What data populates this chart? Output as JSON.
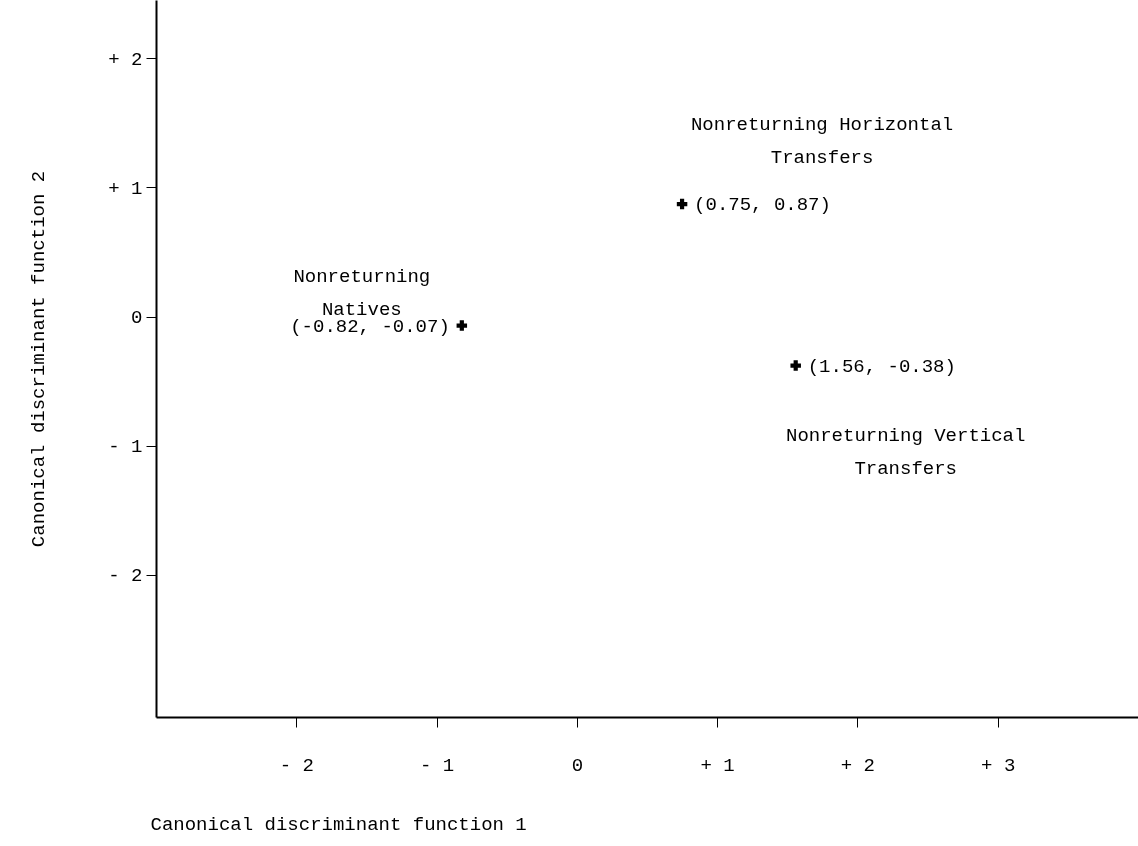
{
  "chart_data": {
    "type": "scatter",
    "xlabel": "Canonical discriminant function 1",
    "ylabel": "Canonical discriminant function 2",
    "series": [
      {
        "name": "Nonreturning\nNatives",
        "color": "#000000",
        "x": [
          -0.82
        ],
        "values": [
          -0.07
        ],
        "value_labels": [
          "(-0.82, -0.07)"
        ]
      },
      {
        "name": "Nonreturning Horizontal\nTransfers",
        "color": "#000000",
        "x": [
          0.75
        ],
        "values": [
          0.87
        ],
        "value_labels": [
          "(0.75, 0.87)"
        ]
      },
      {
        "name": "Nonreturning Vertical\nTransfers",
        "color": "#000000",
        "x": [
          1.56
        ],
        "values": [
          -0.38
        ],
        "value_labels": [
          "(1.56, -0.38)"
        ]
      }
    ],
    "xlim": [
      -3,
      4
    ],
    "ylim": [
      -3.1,
      2.45
    ],
    "xticks": [
      {
        "value": -2,
        "label": "- 2"
      },
      {
        "value": -1,
        "label": "- 1"
      },
      0,
      {
        "value": 1,
        "label": "+ 1"
      },
      {
        "value": 2,
        "label": "+ 2"
      },
      {
        "value": 3,
        "label": "+ 3"
      }
    ],
    "yticks": [
      {
        "value": -2,
        "label": "- 2"
      },
      {
        "value": -1,
        "label": "- 1"
      },
      0,
      {
        "value": 1,
        "label": "+ 1"
      },
      {
        "value": 2,
        "label": "+ 2"
      }
    ],
    "grid": false,
    "marker": "cross"
  }
}
